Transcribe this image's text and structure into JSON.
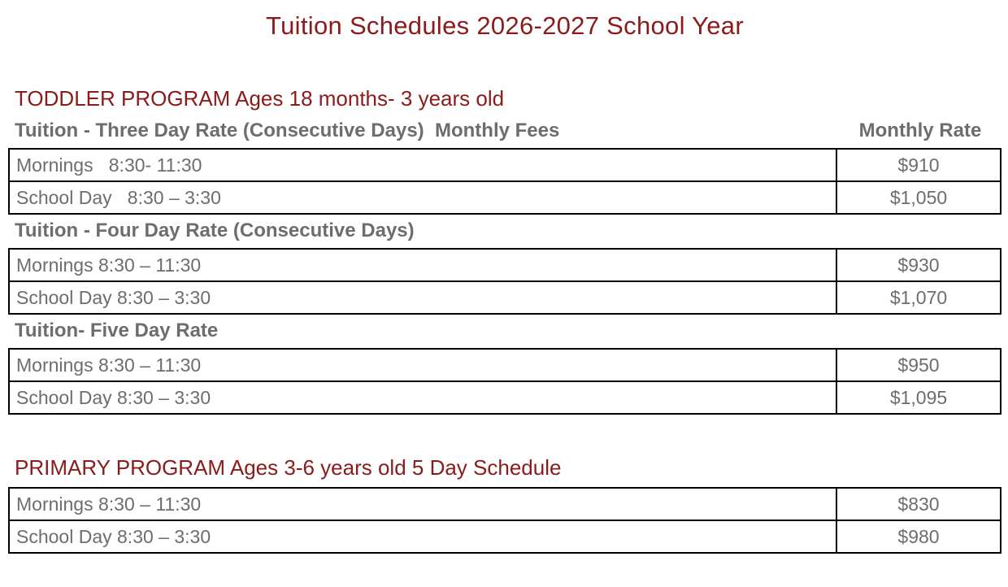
{
  "page": {
    "title": "Tuition Schedules 2026-2027 School Year"
  },
  "colors": {
    "accent": "#8B1B1B",
    "text_gray": "#6D6D6D",
    "table_border": "#000000",
    "background": "#FFFFFF"
  },
  "sections": [
    {
      "heading": "TODDLER PROGRAM Ages 18 months- 3 years old",
      "subsections": [
        {
          "header": "Tuition - Three Day Rate (Consecutive Days)  Monthly Fees",
          "rate_header": "Monthly Rate",
          "rows": [
            {
              "label": "Mornings   8:30- 11:30",
              "rate": "$910"
            },
            {
              "label": "School Day   8:30 – 3:30",
              "rate": "$1,050"
            }
          ]
        },
        {
          "header": "Tuition - Four Day Rate (Consecutive Days)",
          "rows": [
            {
              "label": "Mornings 8:30 – 11:30",
              "rate": "$930"
            },
            {
              "label": "School Day 8:30 – 3:30",
              "rate": "$1,070"
            }
          ]
        },
        {
          "header": "Tuition- Five Day Rate",
          "rows": [
            {
              "label": "Mornings 8:30 – 11:30",
              "rate": "$950"
            },
            {
              "label": "School Day 8:30 – 3:30",
              "rate": "$1,095"
            }
          ]
        }
      ]
    },
    {
      "heading": "PRIMARY PROGRAM Ages 3-6 years old 5 Day Schedule",
      "subsections": [
        {
          "rows": [
            {
              "label": "Mornings 8:30 – 11:30",
              "rate": "$830"
            },
            {
              "label": "School Day 8:30 – 3:30",
              "rate": "$980"
            }
          ]
        }
      ]
    }
  ]
}
